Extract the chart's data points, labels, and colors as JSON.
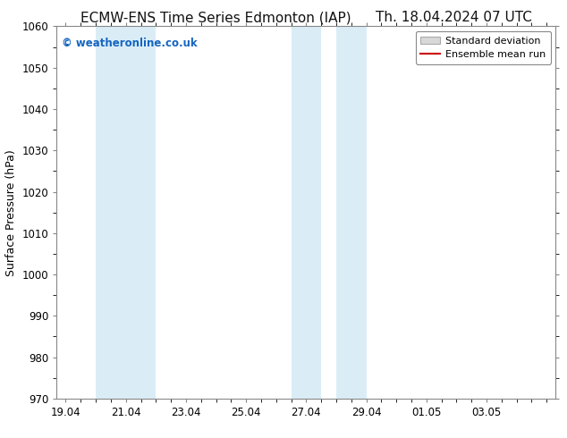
{
  "title_left": "ECMW-ENS Time Series Edmonton (IAP)",
  "title_right": "Th. 18.04.2024 07 UTC",
  "ylabel": "Surface Pressure (hPa)",
  "ylim": [
    970,
    1060
  ],
  "yticks": [
    970,
    980,
    990,
    1000,
    1010,
    1020,
    1030,
    1040,
    1050,
    1060
  ],
  "x_tick_labels": [
    "19.04",
    "21.04",
    "23.04",
    "25.04",
    "27.04",
    "29.04",
    "01.05",
    "03.05"
  ],
  "x_tick_pos": [
    0,
    2,
    4,
    6,
    8,
    10,
    12,
    14
  ],
  "x_min": -0.3,
  "x_max": 16.3,
  "band_ranges": [
    [
      1.0,
      2.0
    ],
    [
      2.0,
      3.0
    ],
    [
      7.5,
      8.5
    ],
    [
      9.0,
      10.0
    ]
  ],
  "band_color": "#daedf7",
  "watermark_text": "© weatheronline.co.uk",
  "watermark_color": "#1565c0",
  "legend_std_label": "Standard deviation",
  "legend_mean_label": "Ensemble mean run",
  "legend_std_facecolor": "#d8d8d8",
  "legend_std_edgecolor": "#aaaaaa",
  "legend_mean_color": "#cc0000",
  "background_color": "#ffffff",
  "plot_bg_color": "#ffffff",
  "spine_color": "#888888",
  "title_fontsize": 11,
  "label_fontsize": 9,
  "tick_fontsize": 8.5,
  "watermark_fontsize": 8.5,
  "legend_fontsize": 8
}
